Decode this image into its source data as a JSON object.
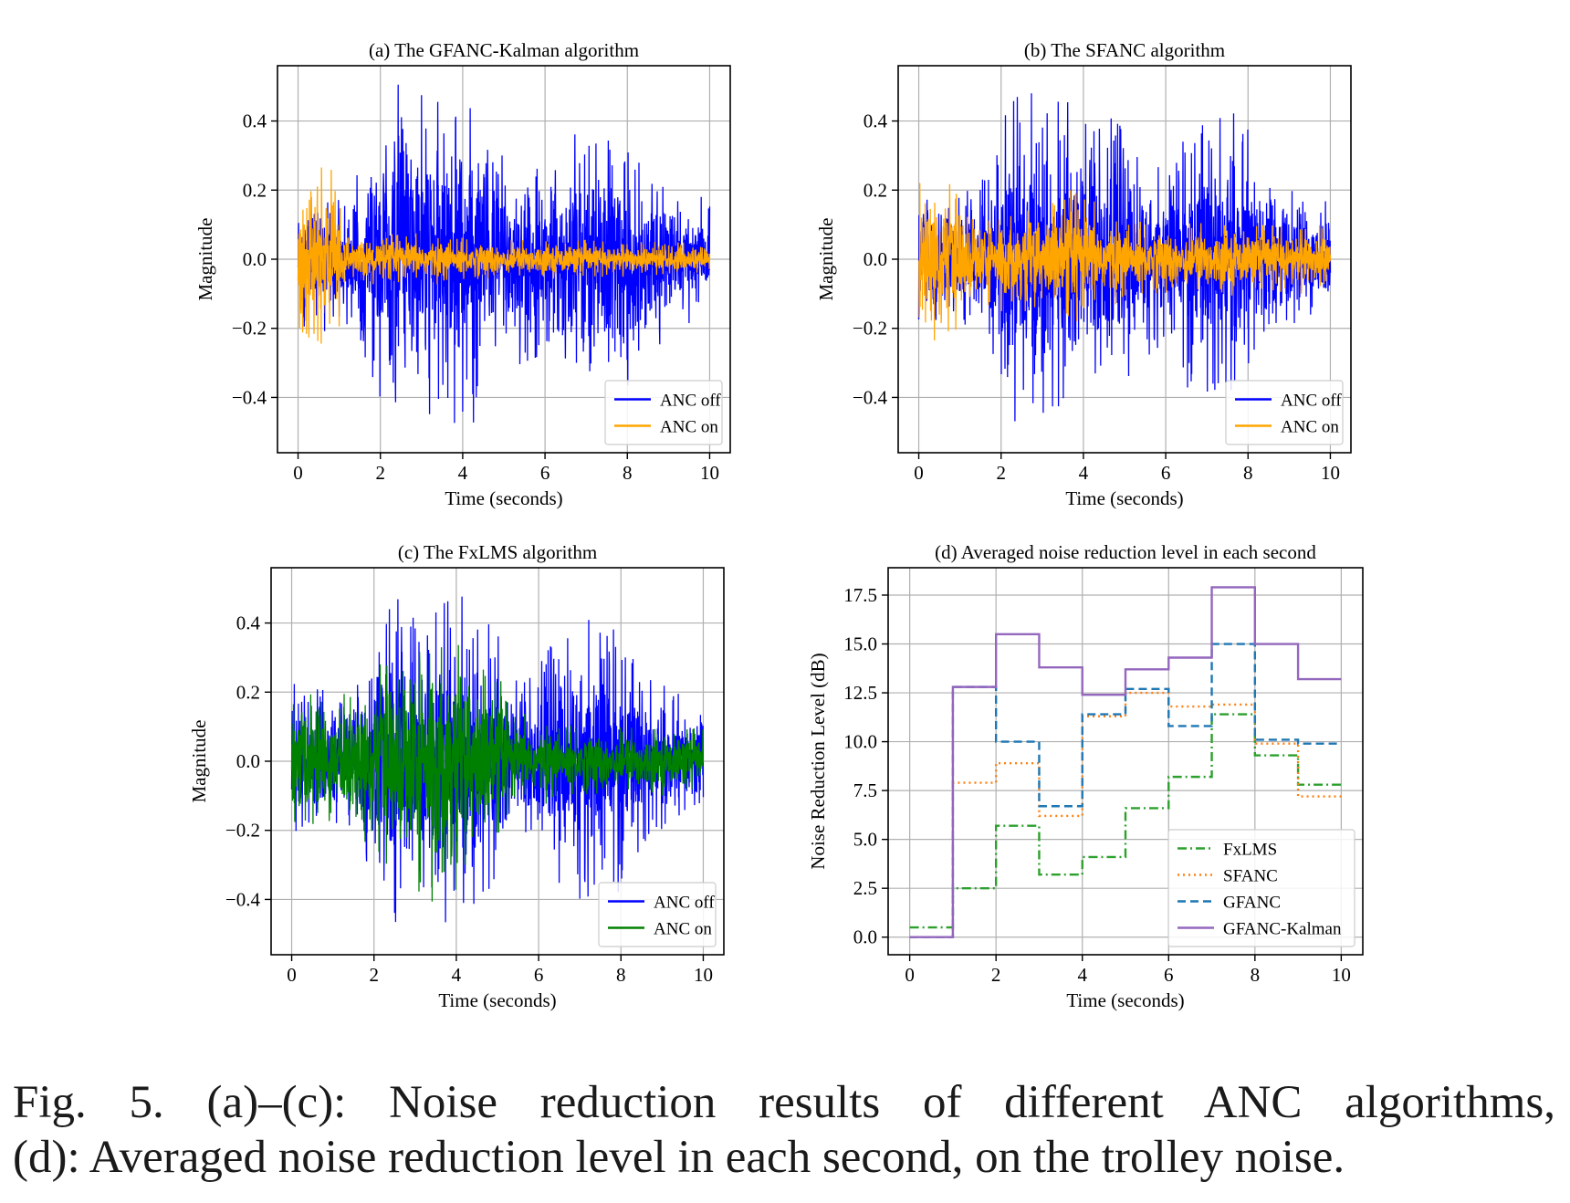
{
  "caption": {
    "line1": "Fig. 5.  (a)–(c): Noise reduction results of different ANC algorithms,",
    "line2": "(d): Averaged noise reduction level in each second, on the trolley noise."
  },
  "colors": {
    "anc_off": "#0000ff",
    "anc_on_orange": "#ffa500",
    "anc_on_green": "#008000",
    "fxlms": "#2ca02c",
    "sfanc": "#ff7f0e",
    "gfanc": "#1f77b4",
    "gfanc_kalman": "#9467bd",
    "grid": "#b0b0b0"
  },
  "chart_data": [
    {
      "id": "a",
      "type": "line",
      "title": "(a) The GFANC-Kalman algorithm",
      "xlabel": "Time (seconds)",
      "ylabel": "Magnitude",
      "xlim": [
        -0.5,
        10.5
      ],
      "ylim": [
        -0.56,
        0.56
      ],
      "xticks": [
        0,
        2,
        4,
        6,
        8,
        10
      ],
      "xtick_labels": [
        "0",
        "2",
        "4",
        "6",
        "8",
        "10"
      ],
      "yticks": [
        -0.4,
        -0.2,
        0.0,
        0.2,
        0.4
      ],
      "ytick_labels": [
        "−0.4",
        "−0.2",
        "0.0",
        "0.2",
        "0.4"
      ],
      "grid": true,
      "legend": "lower-right",
      "series": [
        {
          "name": "ANC off",
          "color_key": "anc_off",
          "envelope_t": [
            0,
            1,
            1.5,
            2,
            2.5,
            3,
            3.5,
            4,
            4.5,
            5,
            5.5,
            6,
            6.5,
            7,
            7.5,
            8,
            8.5,
            9,
            9.5,
            10
          ],
          "envelope_amp": [
            0.18,
            0.16,
            0.2,
            0.33,
            0.42,
            0.38,
            0.36,
            0.42,
            0.34,
            0.3,
            0.24,
            0.22,
            0.3,
            0.34,
            0.36,
            0.3,
            0.22,
            0.18,
            0.15,
            0.14
          ]
        },
        {
          "name": "ANC on",
          "color_key": "anc_on_orange",
          "envelope_t": [
            0,
            0.5,
            1,
            1.05,
            2,
            3,
            4,
            5,
            6,
            7,
            8,
            9,
            10
          ],
          "envelope_amp": [
            0.2,
            0.22,
            0.2,
            0.06,
            0.06,
            0.06,
            0.055,
            0.05,
            0.045,
            0.045,
            0.04,
            0.04,
            0.035
          ]
        }
      ]
    },
    {
      "id": "b",
      "type": "line",
      "title": "(b) The SFANC algorithm",
      "xlabel": "Time (seconds)",
      "ylabel": "Magnitude",
      "xlim": [
        -0.5,
        10.5
      ],
      "ylim": [
        -0.56,
        0.56
      ],
      "xticks": [
        0,
        2,
        4,
        6,
        8,
        10
      ],
      "xtick_labels": [
        "0",
        "2",
        "4",
        "6",
        "8",
        "10"
      ],
      "yticks": [
        -0.4,
        -0.2,
        0.0,
        0.2,
        0.4
      ],
      "ytick_labels": [
        "−0.4",
        "−0.2",
        "0.0",
        "0.2",
        "0.4"
      ],
      "grid": true,
      "legend": "lower-right",
      "series": [
        {
          "name": "ANC off",
          "color_key": "anc_off",
          "envelope_t": [
            0,
            1,
            1.5,
            2,
            2.5,
            3,
            3.5,
            4,
            4.5,
            5,
            5.5,
            6,
            6.5,
            7,
            7.5,
            8,
            8.5,
            9,
            9.5,
            10
          ],
          "envelope_amp": [
            0.18,
            0.16,
            0.2,
            0.33,
            0.42,
            0.38,
            0.36,
            0.42,
            0.34,
            0.3,
            0.24,
            0.22,
            0.3,
            0.34,
            0.36,
            0.3,
            0.22,
            0.18,
            0.15,
            0.14
          ]
        },
        {
          "name": "ANC on",
          "color_key": "anc_on_orange",
          "envelope_t": [
            0,
            0.5,
            1,
            1.5,
            2,
            2.5,
            3,
            3.5,
            4,
            4.5,
            5,
            6,
            7,
            8,
            9,
            10
          ],
          "envelope_amp": [
            0.2,
            0.2,
            0.16,
            0.1,
            0.12,
            0.13,
            0.15,
            0.17,
            0.16,
            0.11,
            0.1,
            0.09,
            0.09,
            0.08,
            0.08,
            0.08
          ]
        }
      ]
    },
    {
      "id": "c",
      "type": "line",
      "title": "(c) The FxLMS algorithm",
      "xlabel": "Time (seconds)",
      "ylabel": "Magnitude",
      "xlim": [
        -0.5,
        10.5
      ],
      "ylim": [
        -0.56,
        0.56
      ],
      "xticks": [
        0,
        2,
        4,
        6,
        8,
        10
      ],
      "xtick_labels": [
        "0",
        "2",
        "4",
        "6",
        "8",
        "10"
      ],
      "yticks": [
        -0.4,
        -0.2,
        0.0,
        0.2,
        0.4
      ],
      "ytick_labels": [
        "−0.4",
        "−0.2",
        "0.0",
        "0.2",
        "0.4"
      ],
      "grid": true,
      "legend": "lower-right",
      "series": [
        {
          "name": "ANC off",
          "color_key": "anc_off",
          "envelope_t": [
            0,
            1,
            1.5,
            2,
            2.5,
            3,
            3.5,
            4,
            4.5,
            5,
            5.5,
            6,
            6.5,
            7,
            7.5,
            8,
            8.5,
            9,
            9.5,
            10
          ],
          "envelope_amp": [
            0.18,
            0.16,
            0.2,
            0.33,
            0.42,
            0.38,
            0.36,
            0.42,
            0.34,
            0.3,
            0.24,
            0.22,
            0.3,
            0.34,
            0.36,
            0.3,
            0.22,
            0.18,
            0.15,
            0.14
          ]
        },
        {
          "name": "ANC on",
          "color_key": "anc_on_green",
          "envelope_t": [
            0,
            0.5,
            1,
            1.5,
            2,
            2.5,
            3,
            3.5,
            4,
            4.5,
            5,
            5.3,
            6,
            7,
            8,
            9,
            10
          ],
          "envelope_amp": [
            0.2,
            0.17,
            0.16,
            0.17,
            0.22,
            0.26,
            0.3,
            0.33,
            0.33,
            0.28,
            0.22,
            0.12,
            0.1,
            0.09,
            0.085,
            0.08,
            0.075
          ]
        }
      ]
    },
    {
      "id": "d",
      "type": "line",
      "title": "(d) Averaged noise reduction level in each second",
      "xlabel": "Time (seconds)",
      "ylabel": "Noise Reduction Level (dB)",
      "xlim": [
        -0.5,
        10.5
      ],
      "ylim": [
        -0.9,
        18.9
      ],
      "xticks": [
        0,
        2,
        4,
        6,
        8,
        10
      ],
      "xtick_labels": [
        "0",
        "2",
        "4",
        "6",
        "8",
        "10"
      ],
      "yticks": [
        0,
        2.5,
        5,
        7.5,
        10,
        12.5,
        15,
        17.5
      ],
      "ytick_labels": [
        "0.0",
        "2.5",
        "5.0",
        "7.5",
        "10.0",
        "12.5",
        "15.0",
        "17.5"
      ],
      "grid": true,
      "legend": "lower-right",
      "step": "post",
      "x": [
        0,
        1,
        2,
        3,
        4,
        5,
        6,
        7,
        8,
        9,
        10
      ],
      "series": [
        {
          "name": "FxLMS",
          "color_key": "fxlms",
          "dash": "dashdot",
          "values": [
            0.5,
            2.5,
            5.7,
            3.2,
            4.1,
            6.6,
            8.2,
            11.4,
            9.3,
            7.8,
            7.8
          ]
        },
        {
          "name": "SFANC",
          "color_key": "sfanc",
          "dash": "dotted",
          "values": [
            0.0,
            7.9,
            8.9,
            6.2,
            11.3,
            12.5,
            11.8,
            11.9,
            9.9,
            7.2,
            7.2
          ]
        },
        {
          "name": "GFANC",
          "color_key": "gfanc",
          "dash": "dashed",
          "values": [
            0.0,
            12.8,
            10.0,
            6.7,
            11.4,
            12.7,
            10.8,
            15.0,
            10.1,
            9.9,
            9.9
          ]
        },
        {
          "name": "GFANC-Kalman",
          "color_key": "gfanc_kalman",
          "dash": "solid",
          "values": [
            0.0,
            12.8,
            15.5,
            13.8,
            12.4,
            13.7,
            14.3,
            17.9,
            15.0,
            13.2,
            13.2
          ]
        }
      ]
    }
  ]
}
